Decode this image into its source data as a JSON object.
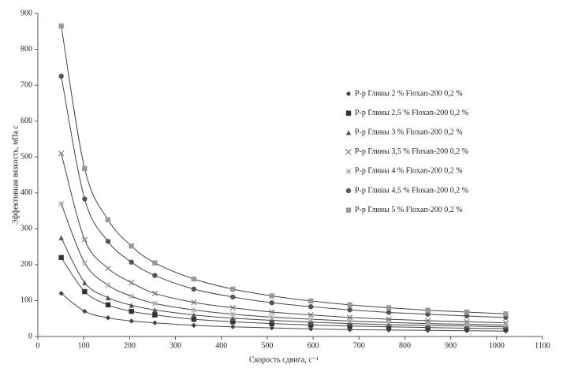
{
  "chart_data": {
    "type": "scatter",
    "x_label": "Скорость сдвига, с⁻¹",
    "y_label": "Эффективная вязкость, мПа с",
    "x": [
      51,
      102,
      153,
      204,
      255,
      340,
      425,
      510,
      595,
      680,
      765,
      850,
      935,
      1020
    ],
    "xlim": [
      0,
      1100
    ],
    "xticks": [
      0,
      100,
      200,
      300,
      400,
      500,
      600,
      700,
      800,
      900,
      1000,
      1100
    ],
    "ylim": [
      0,
      900
    ],
    "yticks": [
      0,
      100,
      200,
      300,
      400,
      500,
      600,
      700,
      800,
      900
    ],
    "grid": false,
    "legend": "right",
    "series": [
      {
        "name": "Р-р Глины 2 % Floxan-200 0,2 %",
        "color": "#444444",
        "marker": "diamond",
        "values": [
          120,
          70,
          52,
          43,
          38,
          31,
          27,
          24,
          21,
          19,
          18,
          17,
          16,
          15
        ]
      },
      {
        "name": "Р-р Глины 2,5 % Floxan-200 0,2 %",
        "color": "#333333",
        "marker": "square",
        "values": [
          220,
          125,
          88,
          70,
          60,
          48,
          41,
          36,
          32,
          29,
          27,
          25,
          23,
          22
        ]
      },
      {
        "name": "Р-р Глины 3 % Floxan-200 0,2 %",
        "color": "#555555",
        "marker": "triangle",
        "values": [
          275,
          150,
          108,
          87,
          74,
          60,
          51,
          45,
          40,
          36,
          33,
          31,
          29,
          27
        ]
      },
      {
        "name": "Р-р Глины 3,5 % Floxan-200 0,2 %",
        "color": "#777777",
        "marker": "cross",
        "values": [
          510,
          270,
          190,
          150,
          120,
          95,
          80,
          68,
          60,
          53,
          48,
          44,
          41,
          38
        ]
      },
      {
        "name": "Р-р Глины 4 % Floxan-200 0,2 %",
        "color": "#aaaaaa",
        "marker": "star",
        "values": [
          370,
          205,
          143,
          112,
          92,
          74,
          62,
          54,
          48,
          43,
          39,
          36,
          34,
          32
        ]
      },
      {
        "name": "Р-р Глины 4,5 % Floxan-200 0,2 %",
        "color": "#555555",
        "marker": "circle",
        "values": [
          725,
          383,
          265,
          207,
          170,
          132,
          110,
          94,
          83,
          74,
          67,
          62,
          57,
          53
        ]
      },
      {
        "name": "Р-р Глины 5 % Floxan-200 0,2 %",
        "color": "#999999",
        "marker": "square",
        "values": [
          865,
          468,
          325,
          252,
          205,
          160,
          132,
          113,
          99,
          88,
          80,
          73,
          68,
          63
        ]
      }
    ]
  }
}
